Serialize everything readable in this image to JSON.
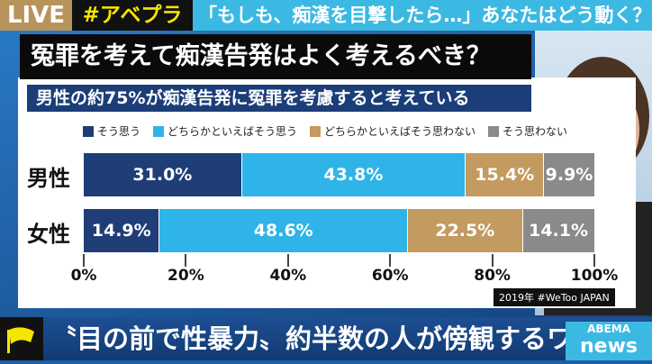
{
  "top": {
    "live": "LIVE",
    "hashtag": "#アベプラ",
    "headline": "「もしも、痴漢を目撃したら…」あなたはどう動く？"
  },
  "title": "冤罪を考えて痴漢告発はよく考えるべき？",
  "subtitle": "男性の約75%が痴漢告発に冤罪を考慮すると考えている",
  "source": "2019年 #WeToo JAPAN",
  "ticker": {
    "text": "〝目の前で性暴力〟約半数の人が傍観するワケ",
    "logo_top": "ABEMA",
    "logo_bottom": "news"
  },
  "chart_data": {
    "type": "bar",
    "orientation": "horizontal",
    "stacked": true,
    "categories": [
      "男性",
      "女性"
    ],
    "series": [
      {
        "name": "そう思う",
        "values": [
          31.0,
          14.9
        ],
        "labels": [
          "31.0%",
          "14.9%"
        ],
        "color": "#1f3e78"
      },
      {
        "name": "どちらかといえばそう思う",
        "values": [
          43.8,
          48.6
        ],
        "labels": [
          "43.8%",
          "48.6%"
        ],
        "color": "#2eb4e8"
      },
      {
        "name": "どちらかといえばそう思わない",
        "values": [
          15.4,
          22.5
        ],
        "labels": [
          "15.4%",
          "22.5%"
        ],
        "color": "#c39a5f"
      },
      {
        "name": "そう思わない",
        "values": [
          9.9,
          14.1
        ],
        "labels": [
          "9.9%",
          "14.1%"
        ],
        "color": "#8a8a8a"
      }
    ],
    "xlim": [
      0,
      100
    ],
    "xticks": [
      "0%",
      "20%",
      "40%",
      "60%",
      "80%",
      "100%"
    ],
    "legend": "top"
  }
}
